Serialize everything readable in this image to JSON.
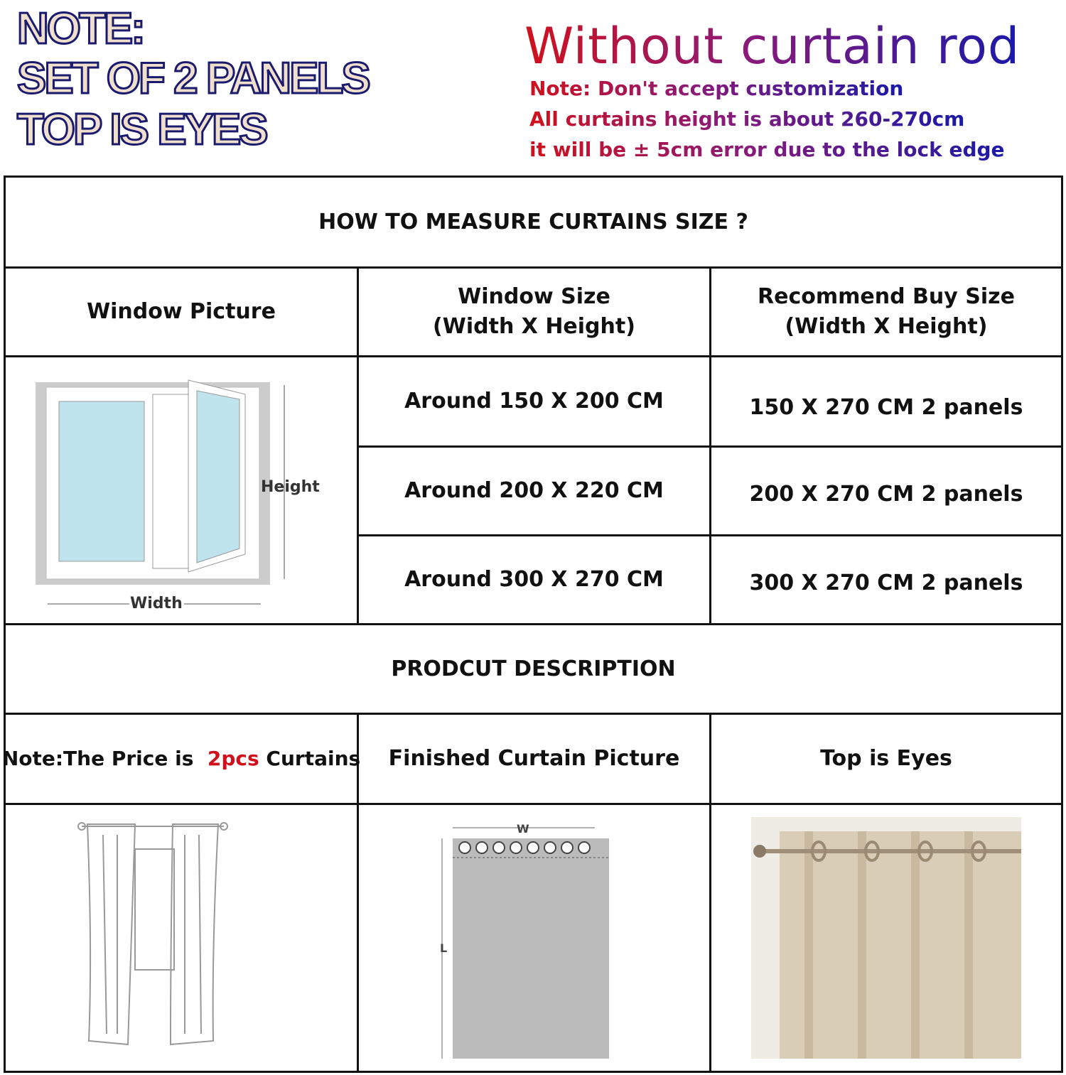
{
  "note": {
    "line1": "NOTE:",
    "line2": "SET OF 2 PANELS",
    "line3": "TOP IS EYES"
  },
  "headline": {
    "title": "Without curtain rod",
    "lines": [
      "Note: Don't accept customization",
      "All curtains height is about 260-270cm",
      "it will be ± 5cm error due to the lock edge"
    ]
  },
  "table": {
    "title": "HOW TO MEASURE CURTAINS SIZE ?",
    "headers": {
      "picture": "Window Picture",
      "window_size": "Window Size",
      "window_size_sub": "(Width X Height)",
      "recommend": "Recommend Buy Size",
      "recommend_sub": "(Width X Height)"
    },
    "window_labels": {
      "height": "Height",
      "width": "Width"
    },
    "rows": [
      {
        "window": "Around 150 X 200 CM",
        "buy": "150 X 270 CM 2 panels"
      },
      {
        "window": "Around 200 X 220 CM",
        "buy": "200 X 270 CM 2 panels"
      },
      {
        "window": "Around 300 X 270 CM",
        "buy": "300 X 270 CM 2 panels"
      }
    ],
    "description_title": "PRODCUT DESCRIPTION",
    "desc_headers": {
      "price_prefix": "Note:The Price is",
      "price_qty": "2pcs",
      "price_suffix": "Curtains",
      "finished": "Finished Curtain Picture",
      "top": "Top is Eyes"
    },
    "diagram_labels": {
      "w": "W",
      "l": "L"
    }
  },
  "colors": {
    "accent_red": "#d0111c",
    "accent_blue": "#1a1aa8",
    "curtain_beige": "#d9cdb8"
  }
}
